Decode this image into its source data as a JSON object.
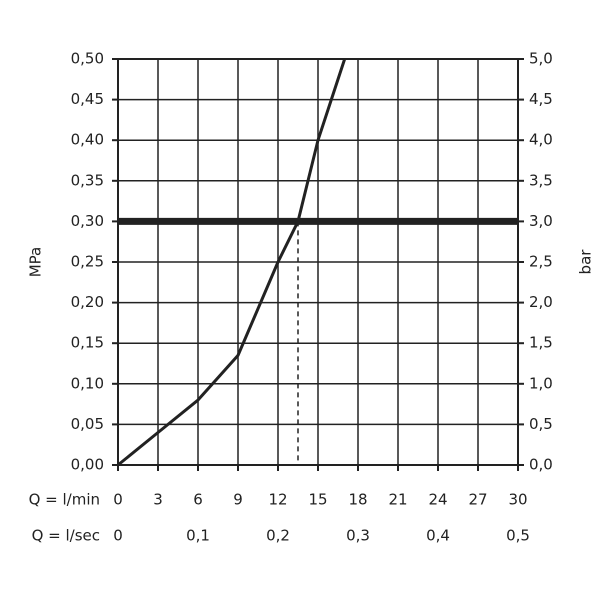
{
  "chart_data": {
    "type": "line",
    "xlabel": "Q = l/min",
    "x2label": "Q = l/sec",
    "ylabel": "MPa",
    "y2label": "bar",
    "x": [
      0,
      3,
      6,
      9,
      12,
      13.5,
      15,
      17
    ],
    "series": [
      {
        "color": "#222222",
        "values": [
          0,
          0.04,
          0.08,
          0.135,
          0.25,
          0.3,
          0.4,
          0.5
        ]
      }
    ],
    "operating_point": {
      "x": 13.5,
      "y": 0.3
    },
    "xlim": [
      0,
      30
    ],
    "xticks": [
      0,
      3,
      6,
      9,
      12,
      15,
      18,
      21,
      24,
      27,
      30
    ],
    "x2lim": [
      0,
      0.5
    ],
    "x2ticks": [
      0,
      {
        "value": 0.1,
        "label": "0,1"
      },
      {
        "value": 0.2,
        "label": "0,2"
      },
      {
        "value": 0.3,
        "label": "0,3"
      },
      {
        "value": 0.4,
        "label": "0,4"
      },
      {
        "value": 0.5,
        "label": "0,5"
      }
    ],
    "ylim": [
      0,
      0.5
    ],
    "yticks": [
      {
        "value": 0,
        "label": "0,00"
      },
      {
        "value": 0.05,
        "label": "0,05"
      },
      {
        "value": 0.1,
        "label": "0,10"
      },
      {
        "value": 0.15,
        "label": "0,15"
      },
      {
        "value": 0.2,
        "label": "0,20"
      },
      {
        "value": 0.25,
        "label": "0,25"
      },
      {
        "value": 0.3,
        "label": "0,30"
      },
      {
        "value": 0.35,
        "label": "0,35"
      },
      {
        "value": 0.4,
        "label": "0,40"
      },
      {
        "value": 0.45,
        "label": "0,45"
      },
      {
        "value": 0.5,
        "label": "0,50"
      }
    ],
    "y2lim": [
      0,
      5
    ],
    "y2ticks": [
      {
        "value": 0,
        "label": "0,0"
      },
      {
        "value": 0.5,
        "label": "0,5"
      },
      {
        "value": 1,
        "label": "1,0"
      },
      {
        "value": 1.5,
        "label": "1,5"
      },
      {
        "value": 2,
        "label": "2,0"
      },
      {
        "value": 2.5,
        "label": "2,5"
      },
      {
        "value": 3,
        "label": "3,0"
      },
      {
        "value": 3.5,
        "label": "3,5"
      },
      {
        "value": 4,
        "label": "4,0"
      },
      {
        "value": 4.5,
        "label": "4,5"
      },
      {
        "value": 5,
        "label": "5,0"
      }
    ],
    "grid": true
  }
}
